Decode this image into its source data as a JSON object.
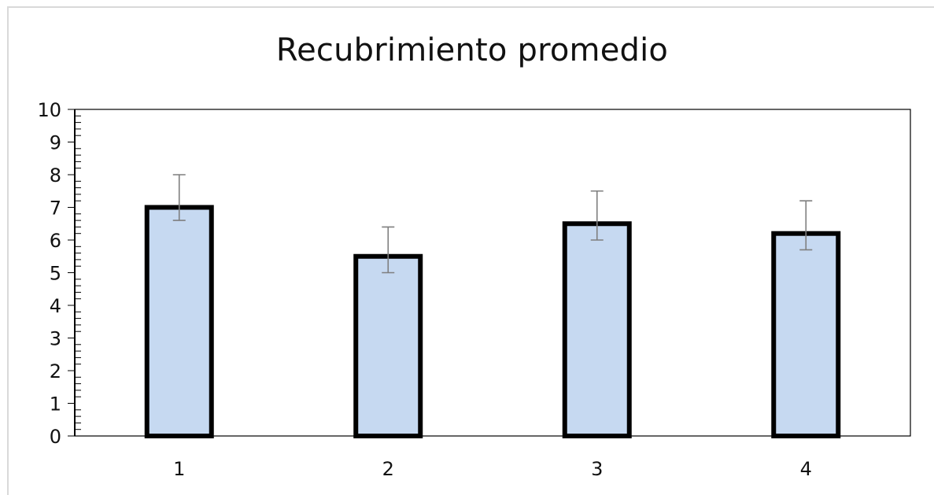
{
  "chart_data": {
    "type": "bar",
    "title": "Recubrimiento promedio",
    "xlabel": "",
    "ylabel": "",
    "categories": [
      "1",
      "2",
      "3",
      "4"
    ],
    "series": [
      {
        "values": [
          7.0,
          5.5,
          6.5,
          6.2
        ],
        "error_bars": [
          {
            "low": 6.6,
            "high": 8.0
          },
          {
            "low": 5.0,
            "high": 6.4
          },
          {
            "low": 6.0,
            "high": 7.5
          },
          {
            "low": 5.7,
            "high": 7.2
          }
        ]
      }
    ],
    "ylim": [
      0,
      10
    ],
    "yticks": [
      "0",
      "1",
      "2",
      "3",
      "4",
      "5",
      "6",
      "7",
      "8",
      "9",
      "10"
    ],
    "grid": false,
    "legend": "none",
    "colors": {
      "bar_fill": "#c6d9f1",
      "bar_stroke": "#000000",
      "error_bar": "#7f7f7f",
      "axis": "#000000",
      "frame": "#d9d9d9"
    }
  }
}
